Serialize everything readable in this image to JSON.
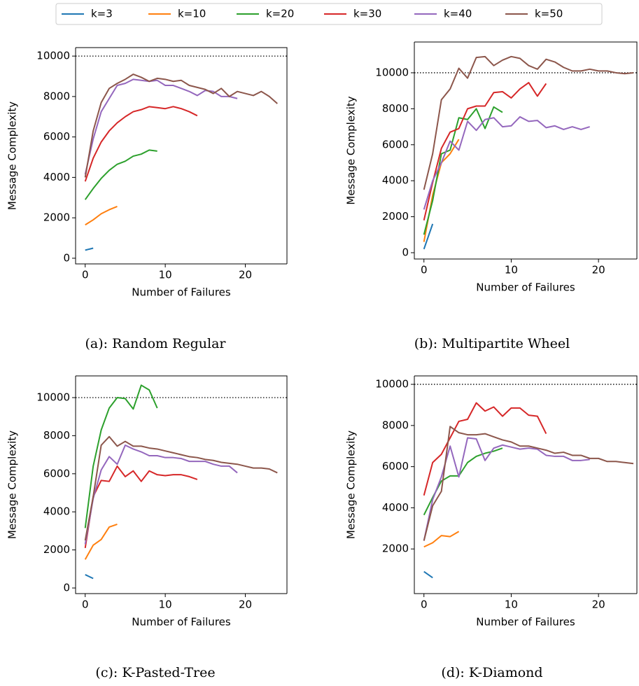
{
  "legend": [
    {
      "name": "k=3",
      "color": "#1f77b4"
    },
    {
      "name": "k=10",
      "color": "#ff7f0e"
    },
    {
      "name": "k=20",
      "color": "#2ca02c"
    },
    {
      "name": "k=30",
      "color": "#d62728"
    },
    {
      "name": "k=40",
      "color": "#9467bd"
    },
    {
      "name": "k=50",
      "color": "#8c564b"
    }
  ],
  "chart_data": [
    {
      "type": "line",
      "caption": "(a): Random Regular",
      "xlabel": "Number of Failures",
      "ylabel": "Message Complexity",
      "x": [
        0,
        1,
        2,
        3,
        4,
        5,
        6,
        7,
        8,
        9,
        10,
        11,
        12,
        13,
        14,
        15,
        16,
        17,
        18,
        19,
        20,
        21,
        22,
        23,
        24
      ],
      "xlim": [
        -1.2,
        25.2
      ],
      "xticks": [
        0,
        10,
        20
      ],
      "ylim": [
        -280,
        10420
      ],
      "yticks": [
        0,
        2000,
        4000,
        6000,
        8000,
        10000
      ],
      "hline": 10000,
      "series": [
        {
          "values": [
            400,
            500,
            null,
            null,
            null,
            null,
            null,
            null,
            null,
            null,
            null,
            null,
            null,
            null,
            null,
            null,
            null,
            null,
            null,
            null,
            null,
            null,
            null,
            null,
            null
          ]
        },
        {
          "values": [
            1650,
            1900,
            2200,
            2400,
            2560,
            null,
            null,
            null,
            null,
            null,
            null,
            null,
            null,
            null,
            null,
            null,
            null,
            null,
            null,
            null,
            null,
            null,
            null,
            null,
            null
          ]
        },
        {
          "values": [
            2900,
            3450,
            3950,
            4350,
            4650,
            4800,
            5050,
            5150,
            5350,
            5300,
            null,
            null,
            null,
            null,
            null,
            null,
            null,
            null,
            null,
            null,
            null,
            null,
            null,
            null,
            null
          ]
        },
        {
          "values": [
            3800,
            4950,
            5750,
            6300,
            6700,
            7000,
            7250,
            7350,
            7500,
            7450,
            7400,
            7500,
            7400,
            7250,
            7050,
            null,
            null,
            null,
            null,
            null,
            null,
            null,
            null,
            null,
            null
          ]
        },
        {
          "values": [
            4150,
            5900,
            7250,
            7900,
            8550,
            8650,
            8850,
            8800,
            8750,
            8800,
            8550,
            8550,
            8400,
            8250,
            8050,
            8300,
            8250,
            8000,
            8000,
            7900,
            null,
            null,
            null,
            null,
            null
          ]
        },
        {
          "values": [
            4000,
            6300,
            7700,
            8400,
            8650,
            8850,
            9100,
            8950,
            8750,
            8900,
            8850,
            8750,
            8800,
            8550,
            8450,
            8350,
            8150,
            8400,
            8000,
            8250,
            8150,
            8050,
            8250,
            8000,
            7650
          ]
        }
      ]
    },
    {
      "type": "line",
      "caption": "(b): Multipartite Wheel",
      "xlabel": "Number of Failures",
      "ylabel": "Message Complexity",
      "x": [
        0,
        1,
        2,
        3,
        4,
        5,
        6,
        7,
        8,
        9,
        10,
        11,
        12,
        13,
        14,
        15,
        16,
        17,
        18,
        19,
        20,
        21,
        22,
        23,
        24
      ],
      "xlim": [
        -1.1,
        24.4
      ],
      "xticks": [
        0,
        10,
        20
      ],
      "ylim": [
        -350,
        11710
      ],
      "yticks": [
        0,
        2000,
        4000,
        6000,
        8000,
        10000
      ],
      "hline": 10000,
      "series": [
        {
          "values": [
            200,
            1600,
            null,
            null,
            null,
            null,
            null,
            null,
            null,
            null,
            null,
            null,
            null,
            null,
            null,
            null,
            null,
            null,
            null,
            null,
            null,
            null,
            null,
            null,
            null
          ]
        },
        {
          "values": [
            600,
            3200,
            5000,
            5500,
            6300,
            null,
            null,
            null,
            null,
            null,
            null,
            null,
            null,
            null,
            null,
            null,
            null,
            null,
            null,
            null,
            null,
            null,
            null,
            null,
            null
          ]
        },
        {
          "values": [
            1000,
            2900,
            5500,
            5700,
            7500,
            7400,
            8000,
            6900,
            8100,
            7800,
            null,
            null,
            null,
            null,
            null,
            null,
            null,
            null,
            null,
            null,
            null,
            null,
            null,
            null,
            null
          ]
        },
        {
          "values": [
            1800,
            3900,
            5800,
            6700,
            6900,
            8000,
            8150,
            8150,
            8900,
            8950,
            8600,
            9100,
            9450,
            8700,
            9400,
            null,
            null,
            null,
            null,
            null,
            null,
            null,
            null,
            null,
            null
          ]
        },
        {
          "values": [
            2400,
            4000,
            5000,
            6200,
            5700,
            7300,
            6800,
            7400,
            7500,
            7000,
            7050,
            7550,
            7300,
            7350,
            6950,
            7050,
            6850,
            7000,
            6850,
            7000,
            null,
            null,
            null,
            null,
            null
          ]
        },
        {
          "values": [
            3500,
            5500,
            8500,
            9100,
            10250,
            9700,
            10850,
            10900,
            10400,
            10700,
            10900,
            10800,
            10400,
            10200,
            10750,
            10600,
            10300,
            10100,
            10100,
            10200,
            10100,
            10100,
            10000,
            9950,
            10000
          ]
        }
      ]
    },
    {
      "type": "line",
      "caption": "(c): K-Pasted-Tree",
      "xlabel": "Number of Failures",
      "ylabel": "Message Complexity",
      "x": [
        0,
        1,
        2,
        3,
        4,
        5,
        6,
        7,
        8,
        9,
        10,
        11,
        12,
        13,
        14,
        15,
        16,
        17,
        18,
        19,
        20,
        21,
        22,
        23,
        24
      ],
      "xlim": [
        -1.2,
        25.2
      ],
      "xticks": [
        0,
        10,
        20
      ],
      "ylim": [
        -294,
        11140
      ],
      "yticks": [
        0,
        2000,
        4000,
        6000,
        8000,
        10000
      ],
      "hline": 10000,
      "series": [
        {
          "values": [
            700,
            500,
            null,
            null,
            null,
            null,
            null,
            null,
            null,
            null,
            null,
            null,
            null,
            null,
            null,
            null,
            null,
            null,
            null,
            null,
            null,
            null,
            null,
            null,
            null
          ]
        },
        {
          "values": [
            1500,
            2250,
            2550,
            3200,
            3350,
            null,
            null,
            null,
            null,
            null,
            null,
            null,
            null,
            null,
            null,
            null,
            null,
            null,
            null,
            null,
            null,
            null,
            null,
            null,
            null
          ]
        },
        {
          "values": [
            3150,
            6400,
            8300,
            9450,
            10000,
            9950,
            9400,
            10650,
            10400,
            9450,
            null,
            null,
            null,
            null,
            null,
            null,
            null,
            null,
            null,
            null,
            null,
            null,
            null,
            null,
            null
          ]
        },
        {
          "values": [
            2100,
            4800,
            5650,
            5600,
            6400,
            5850,
            6150,
            5600,
            6150,
            5950,
            5900,
            5950,
            5950,
            5850,
            5700,
            null,
            null,
            null,
            null,
            null,
            null,
            null,
            null,
            null,
            null
          ]
        },
        {
          "values": [
            2300,
            4700,
            6200,
            6900,
            6500,
            7500,
            7300,
            7150,
            6950,
            6950,
            6850,
            6850,
            6800,
            6650,
            6650,
            6650,
            6500,
            6400,
            6400,
            6050,
            null,
            null,
            null,
            null,
            null
          ]
        },
        {
          "values": [
            2500,
            4800,
            7500,
            7950,
            7450,
            7700,
            7450,
            7450,
            7350,
            7300,
            7200,
            7100,
            7000,
            6900,
            6850,
            6750,
            6700,
            6600,
            6550,
            6500,
            6400,
            6300,
            6300,
            6250,
            6050
          ]
        }
      ]
    },
    {
      "type": "line",
      "caption": "(d): K-Diamond",
      "xlabel": "Number of Failures",
      "ylabel": "Message Complexity",
      "x": [
        0,
        1,
        2,
        3,
        4,
        5,
        6,
        7,
        8,
        9,
        10,
        11,
        12,
        13,
        14,
        15,
        16,
        17,
        18,
        19,
        20,
        21,
        22,
        23,
        24
      ],
      "xlim": [
        -1.1,
        24.4
      ],
      "xticks": [
        0,
        10,
        20
      ],
      "ylim": [
        -170,
        10410
      ],
      "yticks": [
        2000,
        4000,
        6000,
        8000,
        10000
      ],
      "hline": 10000,
      "series": [
        {
          "values": [
            900,
            600,
            null,
            null,
            null,
            null,
            null,
            null,
            null,
            null,
            null,
            null,
            null,
            null,
            null,
            null,
            null,
            null,
            null,
            null,
            null,
            null,
            null,
            null,
            null
          ]
        },
        {
          "values": [
            2100,
            2300,
            2650,
            2600,
            2850,
            null,
            null,
            null,
            null,
            null,
            null,
            null,
            null,
            null,
            null,
            null,
            null,
            null,
            null,
            null,
            null,
            null,
            null,
            null,
            null
          ]
        },
        {
          "values": [
            3650,
            4500,
            5300,
            5550,
            5550,
            6200,
            6500,
            6650,
            6750,
            6900,
            null,
            null,
            null,
            null,
            null,
            null,
            null,
            null,
            null,
            null,
            null,
            null,
            null,
            null,
            null
          ]
        },
        {
          "values": [
            4600,
            6200,
            6600,
            7400,
            8200,
            8300,
            9100,
            8700,
            8900,
            8450,
            8850,
            8850,
            8500,
            8450,
            7600,
            null,
            null,
            null,
            null,
            null,
            null,
            null,
            null,
            null,
            null
          ]
        },
        {
          "values": [
            2400,
            4400,
            5500,
            7000,
            5500,
            7400,
            7350,
            6300,
            6900,
            7050,
            6950,
            6850,
            6900,
            6850,
            6550,
            6500,
            6500,
            6300,
            6300,
            6350,
            null,
            null,
            null,
            null,
            null
          ]
        },
        {
          "values": [
            2400,
            4100,
            4800,
            7950,
            7650,
            7550,
            7550,
            7600,
            7450,
            7300,
            7200,
            7000,
            7000,
            6900,
            6800,
            6650,
            6700,
            6550,
            6550,
            6400,
            6400,
            6250,
            6250,
            6200,
            6150
          ]
        }
      ]
    }
  ]
}
